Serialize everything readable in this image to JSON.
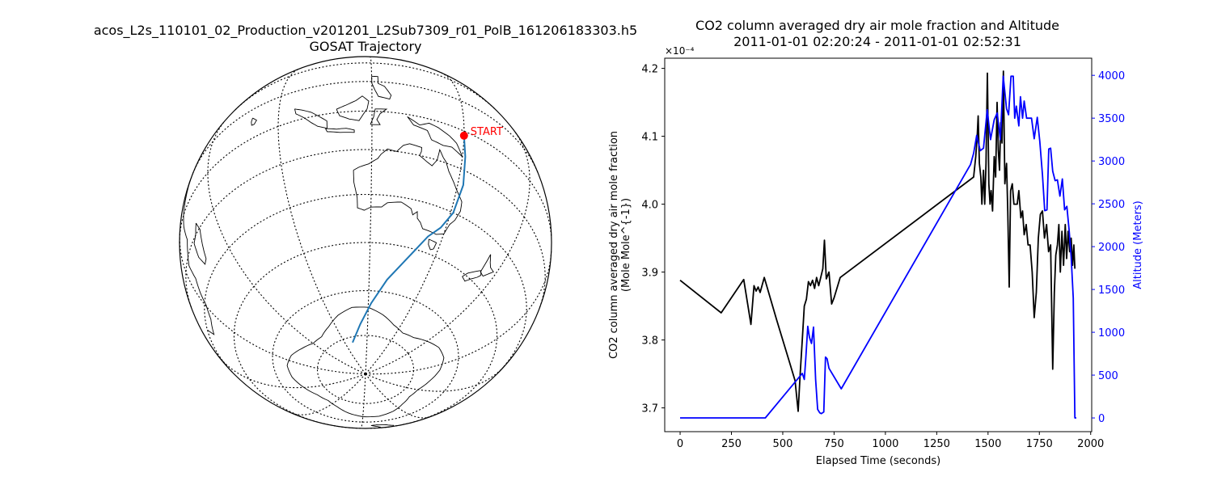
{
  "chart_data": [
    {
      "type": "map",
      "projection": "orthographic",
      "title": "acos_L2s_110101_02_Production_v201201_L2Sub7309_r01_PolB_161206183303.h5",
      "subtitle": "GOSAT Trajectory",
      "start_label": "START",
      "colors": {
        "track": "#1f77b4",
        "start": "#ff0000",
        "coast": "#000000",
        "grid": "#000000"
      },
      "trajectory": [
        {
          "lon": 150,
          "lat": -2
        },
        {
          "lon": 151,
          "lat": -10
        },
        {
          "lon": 152,
          "lat": -20
        },
        {
          "lon": 151,
          "lat": -30
        },
        {
          "lon": 148,
          "lat": -36
        },
        {
          "lon": 144,
          "lat": -40
        },
        {
          "lon": 138,
          "lat": -48
        },
        {
          "lon": 130,
          "lat": -56
        },
        {
          "lon": 122,
          "lat": -64
        },
        {
          "lon": 113,
          "lat": -71
        },
        {
          "lon": 100,
          "lat": -77
        }
      ]
    },
    {
      "type": "line",
      "title": "CO2 column averaged dry air mole fraction and Altitude",
      "subtitle": "2011-01-01 02:20:24 - 2011-01-01 02:52:31",
      "xlabel": "Elapsed Time (seconds)",
      "ylabel": "CO2 column averaged dry air mole fraction",
      "ylabel2": "(Mole Mole^{-1})",
      "y_multiplier": "×10⁻⁴",
      "y2label": "Altitude (Meters)",
      "xlim": [
        -75,
        2005
      ],
      "ylim": [
        3.665,
        4.215
      ],
      "y2lim": [
        -160,
        4200
      ],
      "xticks": [
        0,
        250,
        500,
        750,
        1000,
        1250,
        1500,
        1750,
        2000
      ],
      "yticks": [
        3.7,
        3.8,
        3.9,
        4.0,
        4.1,
        4.2
      ],
      "y2ticks": [
        0,
        500,
        1000,
        1500,
        2000,
        2500,
        3000,
        3500,
        4000
      ],
      "grid": false,
      "series": [
        {
          "color": "#000000",
          "axis": "left",
          "points": [
            [
              0,
              3.888
            ],
            [
              200,
              3.84
            ],
            [
              310,
              3.889
            ],
            [
              345,
              3.823
            ],
            [
              360,
              3.88
            ],
            [
              370,
              3.872
            ],
            [
              380,
              3.878
            ],
            [
              390,
              3.87
            ],
            [
              410,
              3.892
            ],
            [
              470,
              3.83
            ],
            [
              530,
              3.77
            ],
            [
              560,
              3.74
            ],
            [
              575,
              3.695
            ],
            [
              585,
              3.75
            ],
            [
              595,
              3.8
            ],
            [
              605,
              3.85
            ],
            [
              615,
              3.86
            ],
            [
              625,
              3.886
            ],
            [
              635,
              3.88
            ],
            [
              645,
              3.888
            ],
            [
              655,
              3.876
            ],
            [
              665,
              3.892
            ],
            [
              675,
              3.88
            ],
            [
              685,
              3.892
            ],
            [
              695,
              3.905
            ],
            [
              703,
              3.947
            ],
            [
              712,
              3.89
            ],
            [
              725,
              3.9
            ],
            [
              738,
              3.853
            ],
            [
              750,
              3.862
            ],
            [
              780,
              3.892
            ],
            [
              1430,
              4.04
            ],
            [
              1440,
              4.07
            ],
            [
              1447,
              4.1
            ],
            [
              1452,
              4.13
            ],
            [
              1458,
              4.06
            ],
            [
              1465,
              4.04
            ],
            [
              1470,
              4.0
            ],
            [
              1478,
              4.05
            ],
            [
              1484,
              4.0
            ],
            [
              1490,
              4.06
            ],
            [
              1497,
              4.193
            ],
            [
              1504,
              4.03
            ],
            [
              1510,
              4.0
            ],
            [
              1515,
              4.02
            ],
            [
              1522,
              3.99
            ],
            [
              1530,
              4.07
            ],
            [
              1537,
              4.04
            ],
            [
              1544,
              4.15
            ],
            [
              1550,
              4.08
            ],
            [
              1556,
              4.05
            ],
            [
              1562,
              4.12
            ],
            [
              1568,
              4.09
            ],
            [
              1575,
              4.196
            ],
            [
              1582,
              4.03
            ],
            [
              1590,
              4.06
            ],
            [
              1596,
              3.99
            ],
            [
              1603,
              3.878
            ],
            [
              1610,
              4.02
            ],
            [
              1618,
              4.03
            ],
            [
              1626,
              4.0
            ],
            [
              1634,
              4.0
            ],
            [
              1642,
              4.0
            ],
            [
              1650,
              4.02
            ],
            [
              1660,
              3.98
            ],
            [
              1668,
              3.99
            ],
            [
              1676,
              3.955
            ],
            [
              1686,
              3.97
            ],
            [
              1695,
              3.94
            ],
            [
              1705,
              3.94
            ],
            [
              1715,
              3.9
            ],
            [
              1725,
              3.833
            ],
            [
              1735,
              3.87
            ],
            [
              1745,
              3.95
            ],
            [
              1755,
              3.985
            ],
            [
              1765,
              3.99
            ],
            [
              1775,
              3.95
            ],
            [
              1785,
              3.97
            ],
            [
              1795,
              3.93
            ],
            [
              1805,
              3.94
            ],
            [
              1815,
              3.757
            ],
            [
              1823,
              3.87
            ],
            [
              1830,
              3.925
            ],
            [
              1838,
              3.94
            ],
            [
              1845,
              3.97
            ],
            [
              1852,
              3.9
            ],
            [
              1860,
              3.96
            ],
            [
              1868,
              3.91
            ],
            [
              1876,
              3.97
            ],
            [
              1883,
              3.92
            ],
            [
              1890,
              3.96
            ],
            [
              1898,
              3.93
            ],
            [
              1905,
              3.95
            ],
            [
              1912,
              3.91
            ],
            [
              1918,
              3.94
            ],
            [
              1923,
              3.905
            ]
          ]
        },
        {
          "color": "#0000ff",
          "axis": "right",
          "points": [
            [
              0,
              0
            ],
            [
              415,
              0
            ],
            [
              595,
              520
            ],
            [
              605,
              450
            ],
            [
              612,
              690
            ],
            [
              622,
              1070
            ],
            [
              630,
              940
            ],
            [
              640,
              870
            ],
            [
              650,
              1060
            ],
            [
              660,
              450
            ],
            [
              670,
              100
            ],
            [
              680,
              60
            ],
            [
              688,
              50
            ],
            [
              700,
              70
            ],
            [
              708,
              710
            ],
            [
              716,
              690
            ],
            [
              725,
              580
            ],
            [
              785,
              340
            ],
            [
              1415,
              2960
            ],
            [
              1430,
              3090
            ],
            [
              1445,
              3300
            ],
            [
              1462,
              3120
            ],
            [
              1478,
              3150
            ],
            [
              1496,
              3600
            ],
            [
              1512,
              3250
            ],
            [
              1530,
              3480
            ],
            [
              1545,
              3560
            ],
            [
              1560,
              3250
            ],
            [
              1574,
              3990
            ],
            [
              1590,
              3610
            ],
            [
              1600,
              3540
            ],
            [
              1612,
              3990
            ],
            [
              1623,
              3990
            ],
            [
              1630,
              3500
            ],
            [
              1638,
              3640
            ],
            [
              1650,
              3410
            ],
            [
              1658,
              3750
            ],
            [
              1668,
              3500
            ],
            [
              1676,
              3700
            ],
            [
              1688,
              3500
            ],
            [
              1700,
              3500
            ],
            [
              1712,
              3500
            ],
            [
              1725,
              3260
            ],
            [
              1740,
              3510
            ],
            [
              1752,
              3230
            ],
            [
              1765,
              2840
            ],
            [
              1776,
              2420
            ],
            [
              1787,
              2430
            ],
            [
              1796,
              3140
            ],
            [
              1805,
              3150
            ],
            [
              1815,
              2880
            ],
            [
              1827,
              2770
            ],
            [
              1838,
              2780
            ],
            [
              1850,
              2590
            ],
            [
              1862,
              2790
            ],
            [
              1873,
              2430
            ],
            [
              1884,
              2470
            ],
            [
              1895,
              2190
            ],
            [
              1905,
              1880
            ],
            [
              1915,
              1400
            ],
            [
              1923,
              0
            ],
            [
              1930,
              0
            ]
          ]
        }
      ]
    }
  ]
}
